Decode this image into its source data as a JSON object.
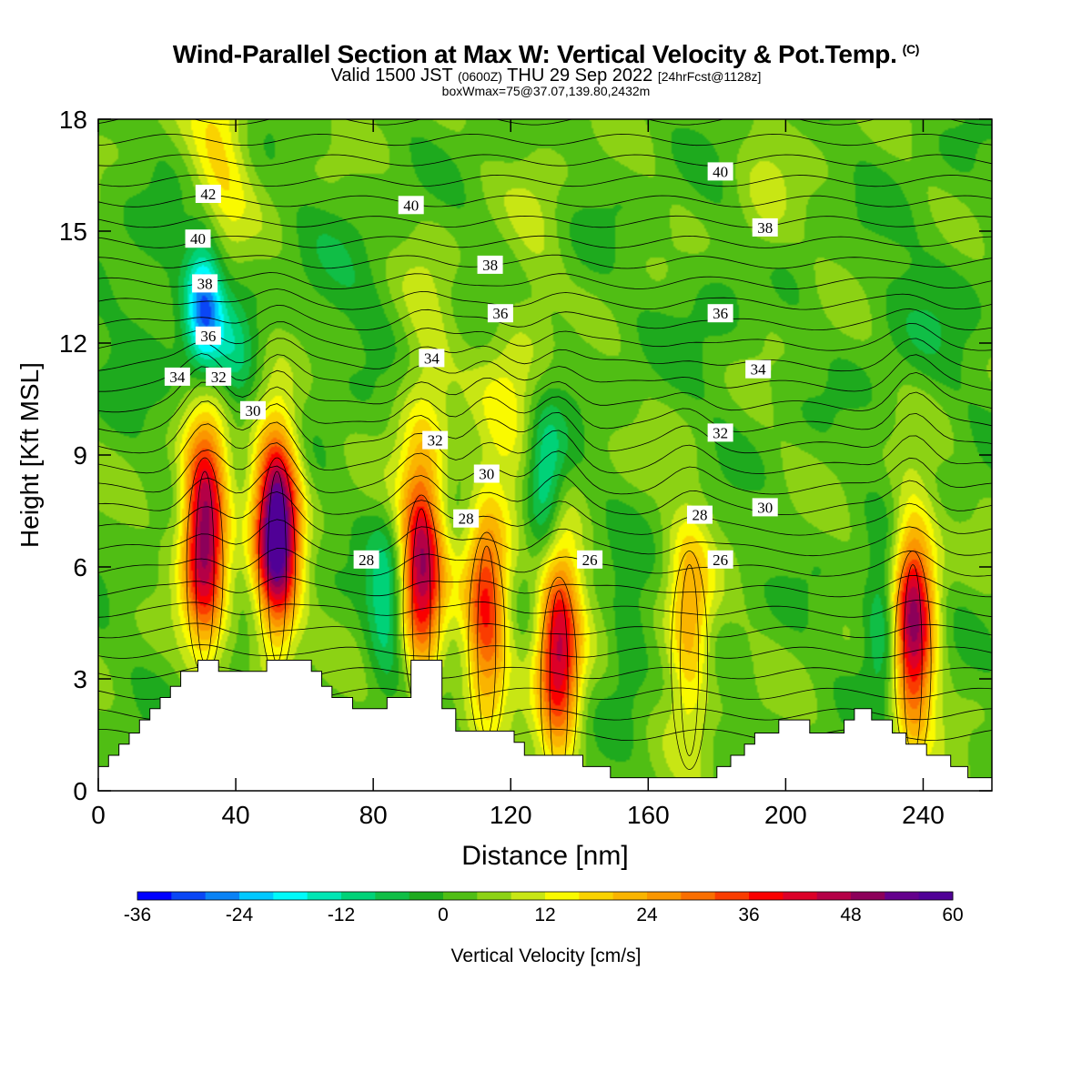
{
  "header": {
    "title": "Wind-Parallel Section at Max W: Vertical Velocity & Pot.Temp.",
    "copyright": "(C)",
    "valid_prefix": "Valid 1500 JST",
    "valid_utc": "(0600Z)",
    "valid_date": "THU 29 Sep 2022",
    "forecast": "[24hrFcst@1128z]",
    "box_info": "boxWmax=75@37.07,139.80,2432m"
  },
  "chart_data": {
    "type": "heatmap",
    "title": "Wind-Parallel Section at Max W: Vertical Velocity & Pot.Temp.",
    "xlabel": "Distance [nm]",
    "ylabel": "Height [Kft MSL]",
    "xlim": [
      0,
      260
    ],
    "ylim": [
      0,
      18
    ],
    "x_ticks": [
      "0",
      "40",
      "80",
      "120",
      "160",
      "200",
      "240"
    ],
    "x_tick_values": [
      0,
      40,
      80,
      120,
      160,
      200,
      240
    ],
    "y_ticks": [
      "0",
      "3",
      "6",
      "9",
      "12",
      "15",
      "18"
    ],
    "y_tick_values": [
      0,
      3,
      6,
      9,
      12,
      15,
      18
    ],
    "colorbar": {
      "label": "Vertical Velocity [cm/s]",
      "min": -36,
      "max": 60,
      "step": 4,
      "tick_labels": [
        "-36",
        "-24",
        "-12",
        "0",
        "12",
        "24",
        "36",
        "48",
        "60"
      ],
      "tick_values": [
        -36,
        -24,
        -12,
        0,
        12,
        24,
        36,
        48,
        60
      ],
      "colors": [
        "#0000ff",
        "#0a46f5",
        "#0a82f5",
        "#00c8ff",
        "#00fafa",
        "#00e6b4",
        "#00d278",
        "#10be46",
        "#1eaa1e",
        "#50be14",
        "#8cd214",
        "#c8e614",
        "#fafa00",
        "#fad200",
        "#fab400",
        "#fa9600",
        "#fa6e00",
        "#fa3c00",
        "#fa0000",
        "#dc0028",
        "#b40046",
        "#8c005a",
        "#64008c",
        "#500096"
      ]
    },
    "updrafts": [
      {
        "x": 31,
        "z": 7.0,
        "w": 52
      },
      {
        "x": 52,
        "z": 7.0,
        "w": 60
      },
      {
        "x": 94,
        "z": 6.0,
        "w": 44
      },
      {
        "x": 113,
        "z": 5.0,
        "w": 34
      },
      {
        "x": 134,
        "z": 3.8,
        "w": 44
      },
      {
        "x": 172,
        "z": 4.5,
        "w": 22
      },
      {
        "x": 237,
        "z": 4.5,
        "w": 48
      },
      {
        "x": 35,
        "z": 17.0,
        "w": 14
      },
      {
        "x": 120,
        "z": 10.5,
        "w": 10
      },
      {
        "x": 95,
        "z": 11.0,
        "w": 8
      },
      {
        "x": 128,
        "z": 14.0,
        "w": 6
      },
      {
        "x": 193,
        "z": 15.0,
        "w": 6
      }
    ],
    "downdrafts": [
      {
        "x": 31,
        "z": 13.0,
        "w": -30
      },
      {
        "x": 130,
        "z": 8.0,
        "w": -20
      },
      {
        "x": 84,
        "z": 5.0,
        "w": -16
      },
      {
        "x": 229,
        "z": 4.5,
        "w": -18
      },
      {
        "x": 154,
        "z": 4.0,
        "w": -8
      },
      {
        "x": 40,
        "z": 11.5,
        "w": -10
      }
    ],
    "terrain_kft": [
      [
        0,
        0.65
      ],
      [
        3,
        0.65
      ],
      [
        3,
        0.95
      ],
      [
        6,
        0.95
      ],
      [
        6,
        1.25
      ],
      [
        9,
        1.25
      ],
      [
        9,
        1.55
      ],
      [
        12,
        1.55
      ],
      [
        12,
        1.9
      ],
      [
        15,
        1.9
      ],
      [
        15,
        2.2
      ],
      [
        18,
        2.2
      ],
      [
        18,
        2.5
      ],
      [
        21,
        2.5
      ],
      [
        21,
        2.8
      ],
      [
        24,
        2.8
      ],
      [
        24,
        3.2
      ],
      [
        29,
        3.2
      ],
      [
        29,
        3.5
      ],
      [
        35,
        3.5
      ],
      [
        35,
        3.2
      ],
      [
        49,
        3.2
      ],
      [
        49,
        3.5
      ],
      [
        62,
        3.5
      ],
      [
        62,
        3.2
      ],
      [
        65,
        3.2
      ],
      [
        65,
        2.8
      ],
      [
        68,
        2.8
      ],
      [
        68,
        2.5
      ],
      [
        74,
        2.5
      ],
      [
        74,
        2.2
      ],
      [
        84,
        2.2
      ],
      [
        84,
        2.5
      ],
      [
        91,
        2.5
      ],
      [
        91,
        3.5
      ],
      [
        100,
        3.5
      ],
      [
        100,
        2.2
      ],
      [
        104,
        2.2
      ],
      [
        104,
        1.6
      ],
      [
        121,
        1.6
      ],
      [
        121,
        1.3
      ],
      [
        124,
        1.3
      ],
      [
        124,
        0.95
      ],
      [
        141,
        0.95
      ],
      [
        141,
        0.65
      ],
      [
        149,
        0.65
      ],
      [
        149,
        0.35
      ],
      [
        180,
        0.35
      ],
      [
        180,
        0.65
      ],
      [
        184,
        0.65
      ],
      [
        184,
        0.95
      ],
      [
        188,
        0.95
      ],
      [
        188,
        1.25
      ],
      [
        191,
        1.25
      ],
      [
        191,
        1.55
      ],
      [
        198,
        1.55
      ],
      [
        198,
        1.9
      ],
      [
        207,
        1.9
      ],
      [
        207,
        1.55
      ],
      [
        217,
        1.55
      ],
      [
        217,
        1.9
      ],
      [
        220,
        1.9
      ],
      [
        220,
        2.2
      ],
      [
        225,
        2.2
      ],
      [
        225,
        1.9
      ],
      [
        231,
        1.9
      ],
      [
        231,
        1.55
      ],
      [
        235,
        1.55
      ],
      [
        235,
        1.25
      ],
      [
        241,
        1.25
      ],
      [
        241,
        0.95
      ],
      [
        248,
        0.95
      ],
      [
        248,
        0.65
      ],
      [
        253,
        0.65
      ],
      [
        253,
        0.35
      ],
      [
        260,
        0.35
      ]
    ],
    "theta_contour_labels": [
      {
        "text": "42",
        "x": 32,
        "z": 16.0
      },
      {
        "text": "40",
        "x": 29,
        "z": 14.8
      },
      {
        "text": "38",
        "x": 31,
        "z": 13.6
      },
      {
        "text": "36",
        "x": 32,
        "z": 12.2
      },
      {
        "text": "34",
        "x": 23,
        "z": 11.1
      },
      {
        "text": "32",
        "x": 35,
        "z": 11.1
      },
      {
        "text": "30",
        "x": 45,
        "z": 10.2
      },
      {
        "text": "40",
        "x": 91,
        "z": 15.7
      },
      {
        "text": "38",
        "x": 114,
        "z": 14.1
      },
      {
        "text": "36",
        "x": 117,
        "z": 12.8
      },
      {
        "text": "34",
        "x": 97,
        "z": 11.6
      },
      {
        "text": "32",
        "x": 98,
        "z": 9.4
      },
      {
        "text": "30",
        "x": 113,
        "z": 8.5
      },
      {
        "text": "28",
        "x": 107,
        "z": 7.3
      },
      {
        "text": "28",
        "x": 78,
        "z": 6.2
      },
      {
        "text": "26",
        "x": 143,
        "z": 6.2
      },
      {
        "text": "40",
        "x": 181,
        "z": 16.6
      },
      {
        "text": "38",
        "x": 194,
        "z": 15.1
      },
      {
        "text": "36",
        "x": 181,
        "z": 12.8
      },
      {
        "text": "34",
        "x": 192,
        "z": 11.3
      },
      {
        "text": "32",
        "x": 181,
        "z": 9.6
      },
      {
        "text": "30",
        "x": 194,
        "z": 7.6
      },
      {
        "text": "28",
        "x": 175,
        "z": 7.4
      },
      {
        "text": "26",
        "x": 181,
        "z": 6.2
      }
    ]
  }
}
